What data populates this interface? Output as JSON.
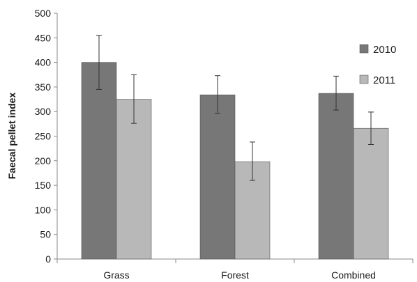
{
  "chart_data": {
    "type": "bar",
    "categories": [
      "Grass",
      "Forest",
      "Combined"
    ],
    "series": [
      {
        "name": "2010",
        "values": [
          400,
          334,
          337
        ],
        "err_low": [
          345,
          296,
          303
        ],
        "err_high": [
          455,
          373,
          372
        ],
        "color": "#777777"
      },
      {
        "name": "2011",
        "values": [
          325,
          198,
          266
        ],
        "err_low": [
          276,
          160,
          233
        ],
        "err_high": [
          375,
          238,
          299
        ],
        "color": "#b8b8b8"
      }
    ],
    "title": "",
    "xlabel": "",
    "ylabel": "Faecal pellet index",
    "ylim": [
      0,
      500
    ],
    "yticks": [
      0,
      50,
      100,
      150,
      200,
      250,
      300,
      350,
      400,
      450,
      500
    ],
    "ytick_labels": [
      "0",
      "50",
      "100",
      "150",
      "200",
      "250",
      "300",
      "350",
      "400",
      "450",
      "500"
    ],
    "grid": false,
    "legend": "top-right",
    "error_bars": true
  }
}
